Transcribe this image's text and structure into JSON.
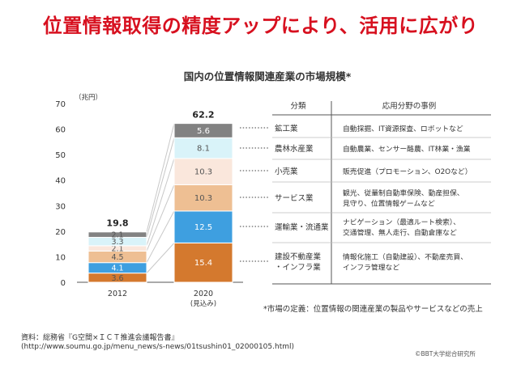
{
  "headline": "位置情報取得の精度アップにより、活用に広がり",
  "chart_data": {
    "type": "bar",
    "stacked": true,
    "title": "国内の位置情報関連産業の市場規模*",
    "ylabel": "（兆円）",
    "ylim": [
      0,
      70
    ],
    "yticks": [
      0,
      10,
      20,
      30,
      40,
      50,
      60,
      70
    ],
    "categories": [
      "2012",
      "2020"
    ],
    "category_sublabels": [
      "",
      "(見込み)"
    ],
    "totals": [
      19.8,
      62.2
    ],
    "series": [
      {
        "name": "建設不動産業・インフラ業",
        "values": [
          3.6,
          15.4
        ],
        "color": "#d4792e"
      },
      {
        "name": "運輸業・流通業",
        "values": [
          4.1,
          12.5
        ],
        "color": "#3e9fe0"
      },
      {
        "name": "サービス業",
        "values": [
          4.5,
          10.3
        ],
        "color": "#eebf93"
      },
      {
        "name": "小売業",
        "values": [
          2.1,
          10.3
        ],
        "color": "#fae7dc"
      },
      {
        "name": "農林水産業",
        "values": [
          3.3,
          8.1
        ],
        "color": "#d9f3f9"
      },
      {
        "name": "鉱工業",
        "values": [
          2.1,
          5.6
        ],
        "color": "#828282"
      }
    ],
    "grid": false
  },
  "table": {
    "header_sector": "分類",
    "header_examples": "応用分野の事例",
    "rows": [
      {
        "sector": "鉱工業",
        "examples": [
          "自動採掘、IT資源探査、ロボットなど"
        ]
      },
      {
        "sector": "農林水産業",
        "examples": [
          "自動農業、センサー酪農、IT林業・漁業"
        ]
      },
      {
        "sector": "小売業",
        "examples": [
          "販売促進（プロモーション、O2Oなど）"
        ]
      },
      {
        "sector": "サービス業",
        "examples": [
          "観光、従量制自動車保険、動産担保、",
          "見守り、位置情報ゲームなど"
        ]
      },
      {
        "sector": "運輸業・流通業",
        "examples": [
          "ナビゲーション（最適ルート検索）、",
          "交通管理、無人走行、自動倉庫など"
        ]
      },
      {
        "sector": "建設不動産業\n・インフラ業",
        "examples": [
          "情報化施工（自動建設）、不動産売買、",
          "インフラ管理など"
        ]
      }
    ]
  },
  "note": "*市場の定義：位置情報の関連産業の製品やサービスなどの売上",
  "source_line1": "資料：総務省『G空間×ＩＣＴ推進会議報告書』",
  "source_line2": "(http://www.soumu.go.jp/menu_news/s-news/01tsushin01_02000105.html)",
  "copyright": "©BBT大学総合研究所"
}
